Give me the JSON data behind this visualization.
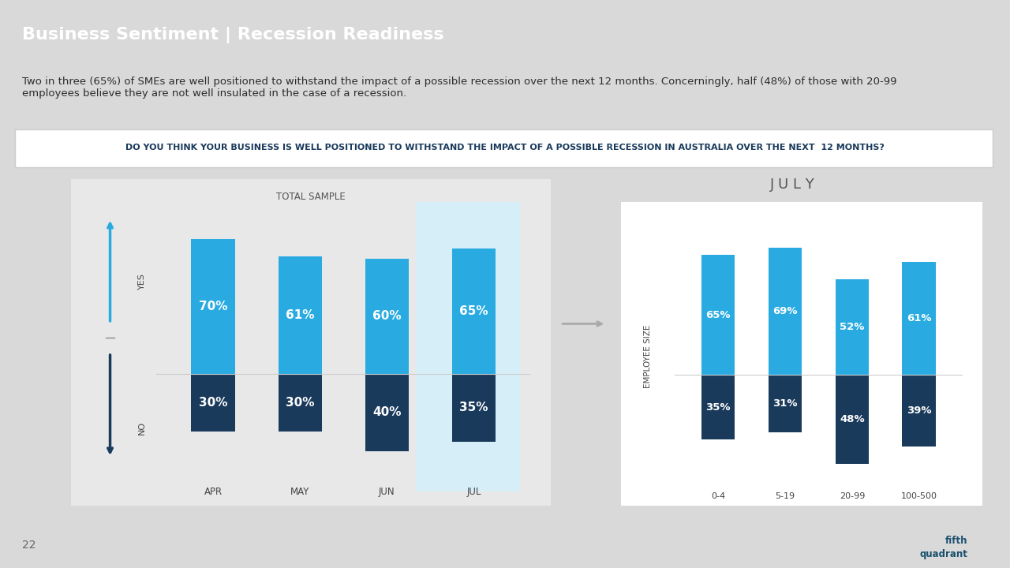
{
  "title": "Business Sentiment | Recession Readiness",
  "subtitle": "Two in three (65%) of SMEs are well positioned to withstand the impact of a possible recession over the next 12 months. Concerningly, half (48%) of those with 20-99\nemployees believe they are not well insulated in the case of a recession.",
  "question": "DO YOU THINK YOUR BUSINESS IS WELL POSITIONED TO WITHSTAND THE IMPACT OF A POSSIBLE RECESSION IN AUSTRALIA OVER THE NEXT  12 MONTHS?",
  "header_bg": "#1a4f6e",
  "subtitle_bg": "#d9d9d9",
  "question_bg": "#efefef",
  "months": [
    "APR",
    "MAY",
    "JUN",
    "JUL"
  ],
  "yes_values": [
    70,
    61,
    60,
    65
  ],
  "no_values": [
    30,
    30,
    40,
    35
  ],
  "yes_color": "#29abe2",
  "no_color": "#1a3a5c",
  "jul_highlight_bg": "#d6eef8",
  "employee_categories": [
    "0-4",
    "5-19",
    "20-99",
    "100-500"
  ],
  "emp_yes": [
    65,
    69,
    52,
    61
  ],
  "emp_no": [
    35,
    31,
    48,
    39
  ],
  "total_sample_label": "TOTAL SAMPLE",
  "july_label": "J U L Y",
  "employee_size_label": "EMPLOYEE SIZE",
  "page_number": "22",
  "white": "#ffffff",
  "light_gray": "#cccccc",
  "dark_gray": "#444444",
  "text_dark": "#2c2c2c",
  "panel_border": "#cccccc",
  "emp_panel_bg": "#f0f0f0",
  "emp_panel_border": "#aaaaaa"
}
